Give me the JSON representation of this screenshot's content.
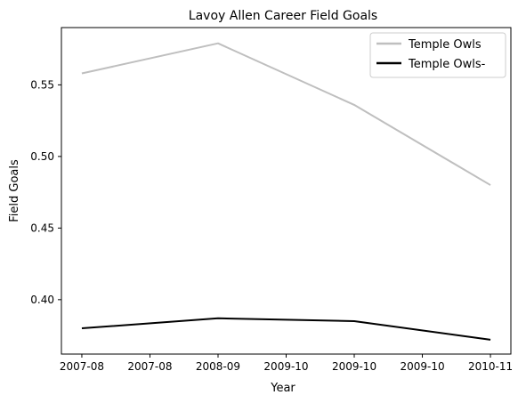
{
  "chart_data": {
    "type": "line",
    "title": "Lavoy Allen Career Field Goals",
    "xlabel": "Year",
    "ylabel": "Field Goals",
    "x_tick_labels": [
      "2007-08",
      "2007-08",
      "2008-09",
      "2009-10",
      "2009-10",
      "2009-10",
      "2010-11"
    ],
    "x_positions": [
      0,
      1,
      2,
      3
    ],
    "y_ticks": [
      0.4,
      0.45,
      0.5,
      0.55
    ],
    "y_tick_labels": [
      "0.40",
      "0.45",
      "0.50",
      "0.55"
    ],
    "ylim": [
      0.362,
      0.59
    ],
    "grid": false,
    "legend_position": "top-right",
    "series": [
      {
        "name": "Temple Owls",
        "color": "#bfbfbf",
        "values": [
          0.558,
          0.579,
          0.536,
          0.48
        ]
      },
      {
        "name": "Temple Owls-",
        "color": "#000000",
        "values": [
          0.38,
          0.387,
          0.385,
          0.372
        ]
      }
    ]
  }
}
